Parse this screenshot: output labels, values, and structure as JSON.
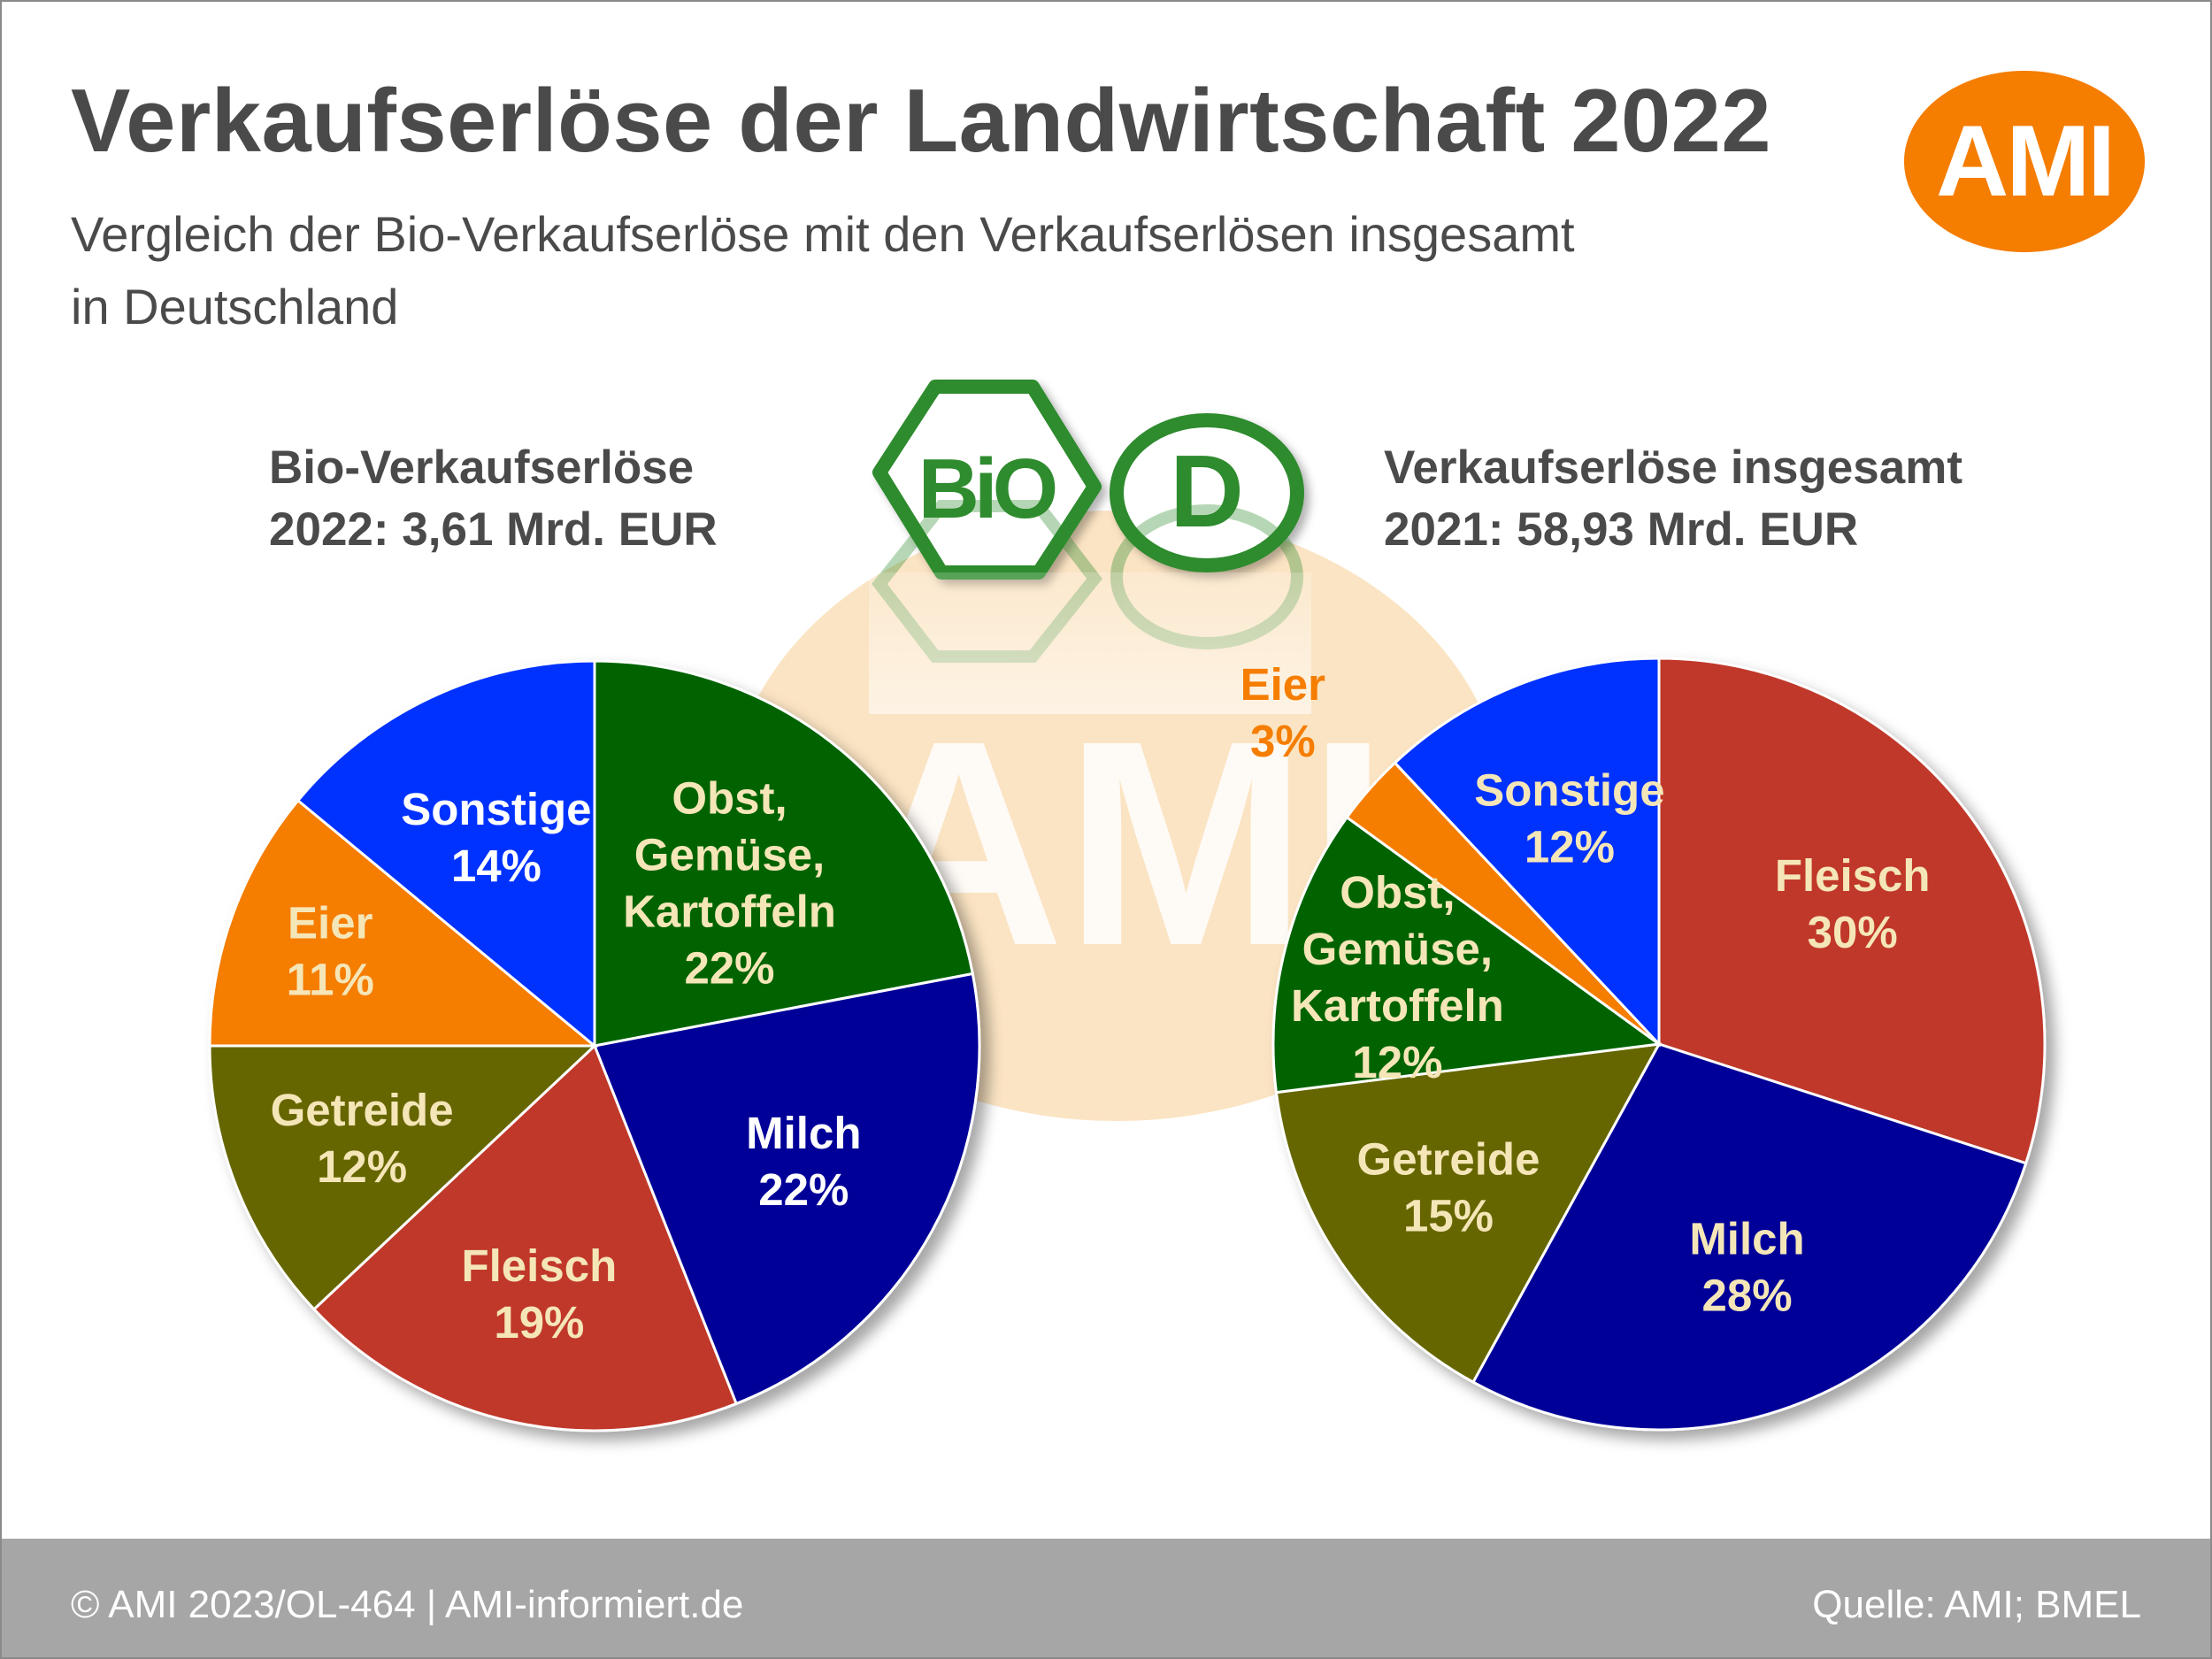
{
  "title": "Verkaufserlöse der Landwirtschaft 2022",
  "subtitle": "Vergleich der Bio-Verkaufserlöse mit den Verkaufserlösen insgesamt in Deutschland",
  "logo_text": "AMI",
  "watermark_text": "AMI",
  "footer": {
    "left": "© AMI 2023/OL-464 | AMI-informiert.de",
    "right": "Quelle: AMI; BMEL"
  },
  "seals": {
    "bio_seal_text": "BiO",
    "d_seal_text": "D",
    "bio_color": "#2e8b2e"
  },
  "chart_data": [
    {
      "type": "pie",
      "title": "Bio-Verkaufserlöse 2022: 3,61 Mrd. EUR",
      "title_lines": [
        "Bio-Verkaufserlöse",
        "2022: 3,61 Mrd. EUR"
      ],
      "slices": [
        {
          "lines": [
            "Obst,",
            "Gemüse,",
            "Kartoffeln",
            "22%"
          ],
          "category": "Obst, Gemüse, Kartoffeln",
          "value": 22,
          "color": "#006400",
          "text_color": "#f5e6b8"
        },
        {
          "lines": [
            "Milch",
            "22%"
          ],
          "category": "Milch",
          "value": 22,
          "color": "#000099",
          "text_color": "#ffffff"
        },
        {
          "lines": [
            "Fleisch",
            "19%"
          ],
          "category": "Fleisch",
          "value": 19,
          "color": "#c0392b",
          "text_color": "#f5e6b8"
        },
        {
          "lines": [
            "Getreide",
            "12%"
          ],
          "category": "Getreide",
          "value": 12,
          "color": "#666600",
          "text_color": "#f5e6b8"
        },
        {
          "lines": [
            "Eier",
            "11%"
          ],
          "category": "Eier",
          "value": 11,
          "color": "#f57d00",
          "text_color": "#f5e6b8"
        },
        {
          "lines": [
            "Sonstige",
            "14%"
          ],
          "category": "Sonstige",
          "value": 14,
          "color": "#0033ff",
          "text_color": "#ffffff"
        }
      ]
    },
    {
      "type": "pie",
      "title": "Verkaufserlöse insgesamt 2021: 58,93 Mrd. EUR",
      "title_lines": [
        "Verkaufserlöse insgesamt",
        "2021: 58,93 Mrd. EUR"
      ],
      "slices": [
        {
          "lines": [
            "Fleisch",
            "30%"
          ],
          "category": "Fleisch",
          "value": 30,
          "color": "#c0392b",
          "text_color": "#f5e6b8"
        },
        {
          "lines": [
            "Milch",
            "28%"
          ],
          "category": "Milch",
          "value": 28,
          "color": "#000099",
          "text_color": "#f5e6b8"
        },
        {
          "lines": [
            "Getreide",
            "15%"
          ],
          "category": "Getreide",
          "value": 15,
          "color": "#666600",
          "text_color": "#f5e6b8"
        },
        {
          "lines": [
            "Obst,",
            "Gemüse,",
            "Kartoffeln",
            "12%"
          ],
          "category": "Obst, Gemüse, Kartoffeln",
          "value": 12,
          "color": "#006400",
          "text_color": "#f5e6b8"
        },
        {
          "lines": [
            "Eier",
            "3%"
          ],
          "category": "Eier",
          "value": 3,
          "color": "#f57d00",
          "text_color": "#f57d00"
        },
        {
          "lines": [
            "Sonstige",
            "12%"
          ],
          "category": "Sonstige",
          "value": 12,
          "color": "#0033ff",
          "text_color": "#f5e6b8"
        }
      ]
    }
  ]
}
